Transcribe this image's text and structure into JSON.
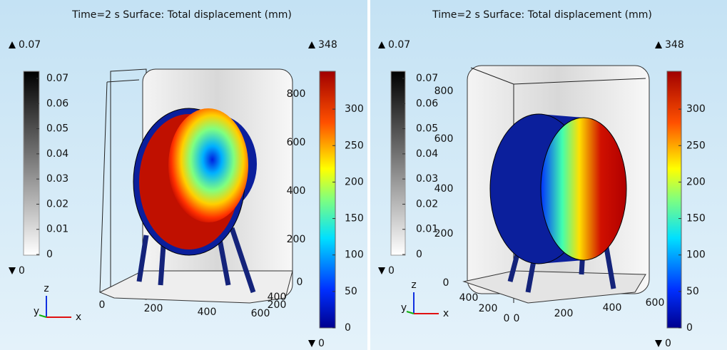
{
  "panels": [
    {
      "header": "Time=2 s   Surface: Total displacement (mm)",
      "gray_bar": {
        "max": 0.07,
        "min": 0,
        "ticks": [
          0,
          0.01,
          0.02,
          0.03,
          0.04,
          0.05,
          0.06,
          0.07
        ]
      },
      "color_bar": {
        "max": 348,
        "min": 0,
        "ticks": [
          0,
          50,
          100,
          150,
          200,
          250,
          300
        ]
      },
      "axis_labels": [
        "800",
        "600",
        "400",
        "200",
        "0",
        "0",
        "200",
        "400",
        "600",
        "400",
        "200"
      ],
      "triad": [
        "z",
        "y",
        "x"
      ]
    },
    {
      "header": "Time=2 s   Surface: Total displacement (mm)",
      "gray_bar": {
        "max": 0.07,
        "min": 0,
        "ticks": [
          0,
          0.01,
          0.02,
          0.03,
          0.04,
          0.05,
          0.06,
          0.07
        ]
      },
      "color_bar": {
        "max": 348,
        "min": 0,
        "ticks": [
          0,
          50,
          100,
          150,
          200,
          250,
          300
        ]
      },
      "axis_labels": [
        "800",
        "600",
        "400",
        "200",
        "0",
        "400",
        "200",
        "0",
        "0",
        "200",
        "400",
        "600"
      ],
      "triad": [
        "z",
        "y",
        "x"
      ]
    }
  ]
}
